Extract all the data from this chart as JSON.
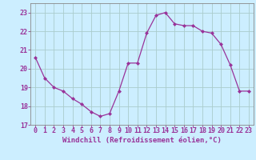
{
  "x": [
    0,
    1,
    2,
    3,
    4,
    5,
    6,
    7,
    8,
    9,
    10,
    11,
    12,
    13,
    14,
    15,
    16,
    17,
    18,
    19,
    20,
    21,
    22,
    23
  ],
  "y": [
    20.6,
    19.5,
    19.0,
    18.8,
    18.4,
    18.1,
    17.7,
    17.45,
    17.6,
    18.8,
    20.3,
    20.3,
    21.9,
    22.85,
    23.0,
    22.4,
    22.3,
    22.3,
    22.0,
    21.9,
    21.3,
    20.2,
    18.8,
    18.8
  ],
  "line_color": "#993399",
  "marker": "D",
  "marker_size": 2.0,
  "bg_color": "#cceeff",
  "grid_color": "#aacccc",
  "xlabel": "Windchill (Refroidissement éolien,°C)",
  "xlabel_color": "#993399",
  "tick_color": "#993399",
  "ylim": [
    17,
    23.5
  ],
  "xlim": [
    -0.5,
    23.5
  ],
  "yticks": [
    17,
    18,
    19,
    20,
    21,
    22,
    23
  ],
  "xticks": [
    0,
    1,
    2,
    3,
    4,
    5,
    6,
    7,
    8,
    9,
    10,
    11,
    12,
    13,
    14,
    15,
    16,
    17,
    18,
    19,
    20,
    21,
    22,
    23
  ],
  "tick_fontsize": 6.0,
  "xlabel_fontsize": 6.5
}
